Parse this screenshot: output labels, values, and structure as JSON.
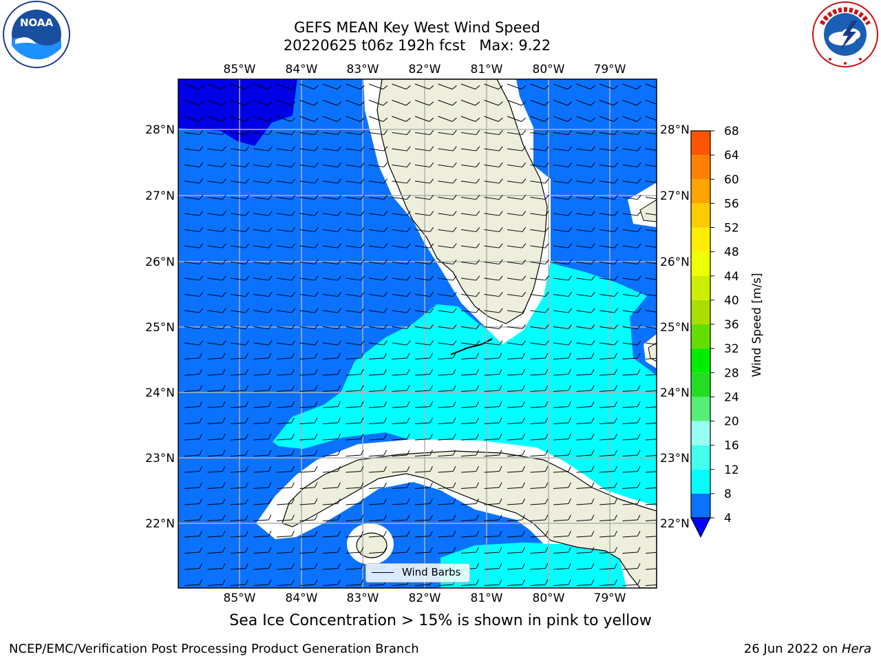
{
  "header": {
    "title_line1": "GEFS MEAN Key West Wind Speed",
    "title_line2": "20220625 t06z 192h fcst   Max: 9.22"
  },
  "logos": {
    "left": "noaa-logo",
    "left_text": "NOAA",
    "left_ring_text": "NATIONAL OCEANIC AND ATMOSPHERIC ADMINISTRATION · U.S. DEPARTMENT OF COMMERCE",
    "right": "national-weather-service-logo",
    "right_ring_text": "NATIONAL WEATHER SERVICE"
  },
  "map": {
    "lon_labels": [
      "85°W",
      "84°W",
      "83°W",
      "82°W",
      "81°W",
      "80°W",
      "79°W"
    ],
    "lat_labels": [
      "28°N",
      "27°N",
      "26°N",
      "25°N",
      "24°N",
      "23°N",
      "22°N"
    ],
    "legend_label": "Wind Barbs",
    "field_colors": {
      "4-8": "#0a72ff",
      "8-12": "#00ffff",
      "below-4": "#0000e6",
      "land": "#eeeedc",
      "grid": "#b0b0b0"
    }
  },
  "colorbar": {
    "label": "Wind Speed [m/s]",
    "ticks": [
      "4",
      "8",
      "12",
      "16",
      "20",
      "24",
      "28",
      "32",
      "36",
      "40",
      "44",
      "48",
      "52",
      "56",
      "60",
      "64",
      "68"
    ],
    "colors": [
      "#0a72ff",
      "#00ffff",
      "#44ffee",
      "#99fff5",
      "#55ee77",
      "#22dd22",
      "#00ee00",
      "#66dd00",
      "#aadd00",
      "#ccee00",
      "#eeff00",
      "#ffee00",
      "#ffcc00",
      "#ffa500",
      "#ff8000",
      "#ff5500",
      "#ff2a00",
      "#ff0000"
    ],
    "extend_low_color": "#0000ff"
  },
  "subtitle": "Sea Ice Concentration > 15% is shown in pink to yellow",
  "footer": {
    "left": "NCEP/EMC/Verification Post Processing Product Generation Branch",
    "right_date": "26 Jun 2022 on ",
    "right_host": "Hera"
  }
}
